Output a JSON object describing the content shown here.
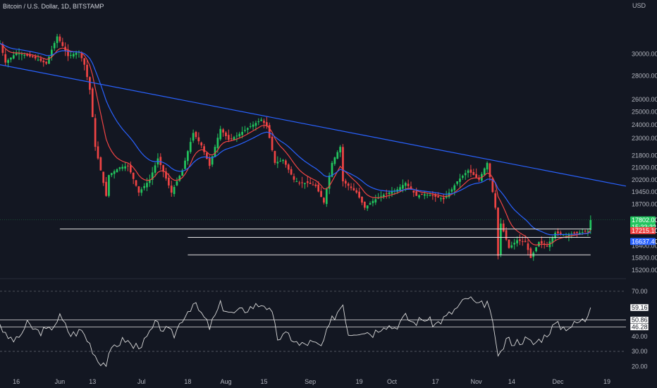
{
  "header": {
    "symbol_title": "Bitcoin / U.S. Dollar, 1D, BITSTAMP",
    "currency": "USD"
  },
  "colors": {
    "background": "#131722",
    "up": "#22c55e",
    "down": "#ef4444",
    "ema_fast": "#ef4444",
    "ema_slow": "#2962ff",
    "trendline": "#2962ff",
    "support": "#e6e6e6",
    "rsi": "#d9d9d9",
    "grid": "#2a2e39",
    "text": "#b2b5be"
  },
  "chart_data": [
    {
      "type": "candlestick",
      "title": "Bitcoin / U.S. Dollar, 1D, BITSTAMP",
      "y_unit": "USD",
      "y_scale": "log",
      "ylim": [
        14900,
        34000
      ],
      "y_ticks": [
        30000,
        28000,
        26000,
        25000,
        24000,
        23000,
        21800,
        21000,
        20200,
        19450,
        18700,
        16400,
        15800,
        15200
      ],
      "x_range": [
        "2022-05-10",
        "2022-12-26"
      ],
      "x_ticks": [
        {
          "date": "2022-05-16",
          "label": "16"
        },
        {
          "date": "2022-06-01",
          "label": "Jun"
        },
        {
          "date": "2022-06-13",
          "label": "13"
        },
        {
          "date": "2022-07-01",
          "label": "Jul"
        },
        {
          "date": "2022-07-18",
          "label": "18"
        },
        {
          "date": "2022-08-01",
          "label": "Aug"
        },
        {
          "date": "2022-08-15",
          "label": "15"
        },
        {
          "date": "2022-09-01",
          "label": "Sep"
        },
        {
          "date": "2022-09-19",
          "label": "19"
        },
        {
          "date": "2022-10-01",
          "label": "Oct"
        },
        {
          "date": "2022-10-17",
          "label": "17"
        },
        {
          "date": "2022-11-01",
          "label": "Nov"
        },
        {
          "date": "2022-11-14",
          "label": "14"
        },
        {
          "date": "2022-12-01",
          "label": "Dec"
        },
        {
          "date": "2022-12-19",
          "label": "19"
        }
      ],
      "price_path": [
        [
          "2022-05-10",
          31000
        ],
        [
          "2022-05-12",
          29200
        ],
        [
          "2022-05-16",
          30100
        ],
        [
          "2022-05-22",
          29700
        ],
        [
          "2022-05-27",
          29100
        ],
        [
          "2022-05-31",
          31700
        ],
        [
          "2022-06-04",
          29800
        ],
        [
          "2022-06-08",
          30200
        ],
        [
          "2022-06-10",
          29000
        ],
        [
          "2022-06-12",
          26800
        ],
        [
          "2022-06-14",
          22400
        ],
        [
          "2022-06-18",
          19200
        ],
        [
          "2022-06-19",
          20500
        ],
        [
          "2022-06-23",
          21000
        ],
        [
          "2022-06-26",
          21100
        ],
        [
          "2022-06-30",
          19400
        ],
        [
          "2022-07-04",
          20200
        ],
        [
          "2022-07-07",
          21600
        ],
        [
          "2022-07-12",
          19400
        ],
        [
          "2022-07-16",
          20800
        ],
        [
          "2022-07-20",
          23400
        ],
        [
          "2022-07-23",
          22500
        ],
        [
          "2022-07-26",
          21100
        ],
        [
          "2022-07-30",
          23700
        ],
        [
          "2022-08-02",
          22900
        ],
        [
          "2022-08-05",
          23200
        ],
        [
          "2022-08-10",
          23900
        ],
        [
          "2022-08-14",
          24400
        ],
        [
          "2022-08-16",
          23900
        ],
        [
          "2022-08-19",
          21300
        ],
        [
          "2022-08-22",
          21500
        ],
        [
          "2022-08-26",
          20200
        ],
        [
          "2022-08-28",
          20000
        ],
        [
          "2022-08-31",
          20000
        ],
        [
          "2022-09-03",
          19800
        ],
        [
          "2022-09-06",
          18800
        ],
        [
          "2022-09-09",
          21300
        ],
        [
          "2022-09-12",
          22400
        ],
        [
          "2022-09-13",
          20100
        ],
        [
          "2022-09-18",
          19400
        ],
        [
          "2022-09-21",
          18500
        ],
        [
          "2022-09-24",
          18900
        ],
        [
          "2022-09-27",
          19200
        ],
        [
          "2022-09-30",
          19400
        ],
        [
          "2022-10-03",
          19600
        ],
        [
          "2022-10-06",
          20000
        ],
        [
          "2022-10-10",
          19200
        ],
        [
          "2022-10-13",
          19300
        ],
        [
          "2022-10-16",
          19200
        ],
        [
          "2022-10-20",
          19000
        ],
        [
          "2022-10-23",
          19600
        ],
        [
          "2022-10-25",
          20100
        ],
        [
          "2022-10-29",
          20800
        ],
        [
          "2022-11-02",
          20200
        ],
        [
          "2022-11-05",
          21300
        ],
        [
          "2022-11-08",
          18500
        ],
        [
          "2022-11-09",
          15900
        ],
        [
          "2022-11-10",
          17600
        ],
        [
          "2022-11-13",
          16300
        ],
        [
          "2022-11-16",
          16700
        ],
        [
          "2022-11-19",
          16600
        ],
        [
          "2022-11-21",
          15800
        ],
        [
          "2022-11-24",
          16600
        ],
        [
          "2022-11-27",
          16400
        ],
        [
          "2022-11-30",
          17100
        ],
        [
          "2022-12-03",
          17000
        ],
        [
          "2022-12-06",
          17050
        ],
        [
          "2022-12-09",
          17100
        ],
        [
          "2022-12-12",
          17200
        ],
        [
          "2022-12-13",
          17802
        ]
      ],
      "price_lines": [
        {
          "value": 17802.0,
          "label": "17802.00",
          "sublabel": "15:33:32",
          "color": "#22c55e"
        },
        {
          "value": 17215.1,
          "label": "17215.10",
          "color": "#ef4444"
        },
        {
          "value": 16637.4,
          "label": "16637.40",
          "color": "#2962ff"
        }
      ],
      "trendline": {
        "from": [
          "2022-05-10",
          29000
        ],
        "to": [
          "2022-12-26",
          19800
        ]
      },
      "support_levels": [
        {
          "value": 17300,
          "from": "2022-06-01",
          "to": "2022-12-13"
        },
        {
          "value": 16850,
          "from": "2022-07-18",
          "to": "2022-12-13"
        },
        {
          "value": 15950,
          "from": "2022-07-18",
          "to": "2022-12-13"
        }
      ]
    },
    {
      "type": "line",
      "indicator": "RSI",
      "ylim": [
        15,
        77
      ],
      "y_ticks": [
        70.0,
        40.0,
        30.0,
        20.0
      ],
      "dashed_levels": [
        70,
        30
      ],
      "reference_lines": [
        50.86,
        46.28
      ],
      "labels": [
        {
          "value": 59.16,
          "label": "59.16"
        },
        {
          "value": 50.86,
          "label": "50.86"
        },
        {
          "value": 46.28,
          "label": "46.28"
        }
      ],
      "path": [
        [
          "2022-05-10",
          49
        ],
        [
          "2022-05-12",
          40
        ],
        [
          "2022-05-16",
          37
        ],
        [
          "2022-05-20",
          48
        ],
        [
          "2022-05-24",
          43
        ],
        [
          "2022-05-28",
          44
        ],
        [
          "2022-06-01",
          53
        ],
        [
          "2022-06-05",
          41
        ],
        [
          "2022-06-09",
          44
        ],
        [
          "2022-06-12",
          35
        ],
        [
          "2022-06-15",
          24
        ],
        [
          "2022-06-18",
          22
        ],
        [
          "2022-06-21",
          34
        ],
        [
          "2022-06-25",
          38
        ],
        [
          "2022-06-28",
          33
        ],
        [
          "2022-07-02",
          36
        ],
        [
          "2022-07-06",
          48
        ],
        [
          "2022-07-09",
          45
        ],
        [
          "2022-07-13",
          41
        ],
        [
          "2022-07-16",
          52
        ],
        [
          "2022-07-20",
          62
        ],
        [
          "2022-07-23",
          55
        ],
        [
          "2022-07-26",
          46
        ],
        [
          "2022-07-30",
          61
        ],
        [
          "2022-08-03",
          55
        ],
        [
          "2022-08-07",
          57
        ],
        [
          "2022-08-11",
          60
        ],
        [
          "2022-08-15",
          62
        ],
        [
          "2022-08-18",
          54
        ],
        [
          "2022-08-20",
          39
        ],
        [
          "2022-08-24",
          41
        ],
        [
          "2022-08-28",
          34
        ],
        [
          "2022-09-01",
          36
        ],
        [
          "2022-09-05",
          33
        ],
        [
          "2022-09-09",
          51
        ],
        [
          "2022-09-13",
          62
        ],
        [
          "2022-09-15",
          42
        ],
        [
          "2022-09-20",
          44
        ],
        [
          "2022-09-24",
          42
        ],
        [
          "2022-09-28",
          48
        ],
        [
          "2022-10-02",
          46
        ],
        [
          "2022-10-06",
          53
        ],
        [
          "2022-10-09",
          49
        ],
        [
          "2022-10-13",
          52
        ],
        [
          "2022-10-17",
          48
        ],
        [
          "2022-10-21",
          53
        ],
        [
          "2022-10-25",
          59
        ],
        [
          "2022-10-29",
          66
        ],
        [
          "2022-11-02",
          60
        ],
        [
          "2022-11-05",
          63
        ],
        [
          "2022-11-08",
          40
        ],
        [
          "2022-11-09",
          24
        ],
        [
          "2022-11-12",
          38
        ],
        [
          "2022-11-15",
          36
        ],
        [
          "2022-11-19",
          38
        ],
        [
          "2022-11-22",
          35
        ],
        [
          "2022-11-26",
          40
        ],
        [
          "2022-11-30",
          48
        ],
        [
          "2022-12-03",
          46
        ],
        [
          "2022-12-06",
          47
        ],
        [
          "2022-12-09",
          50
        ],
        [
          "2022-12-11",
          51
        ],
        [
          "2022-12-13",
          59.16
        ]
      ]
    }
  ]
}
